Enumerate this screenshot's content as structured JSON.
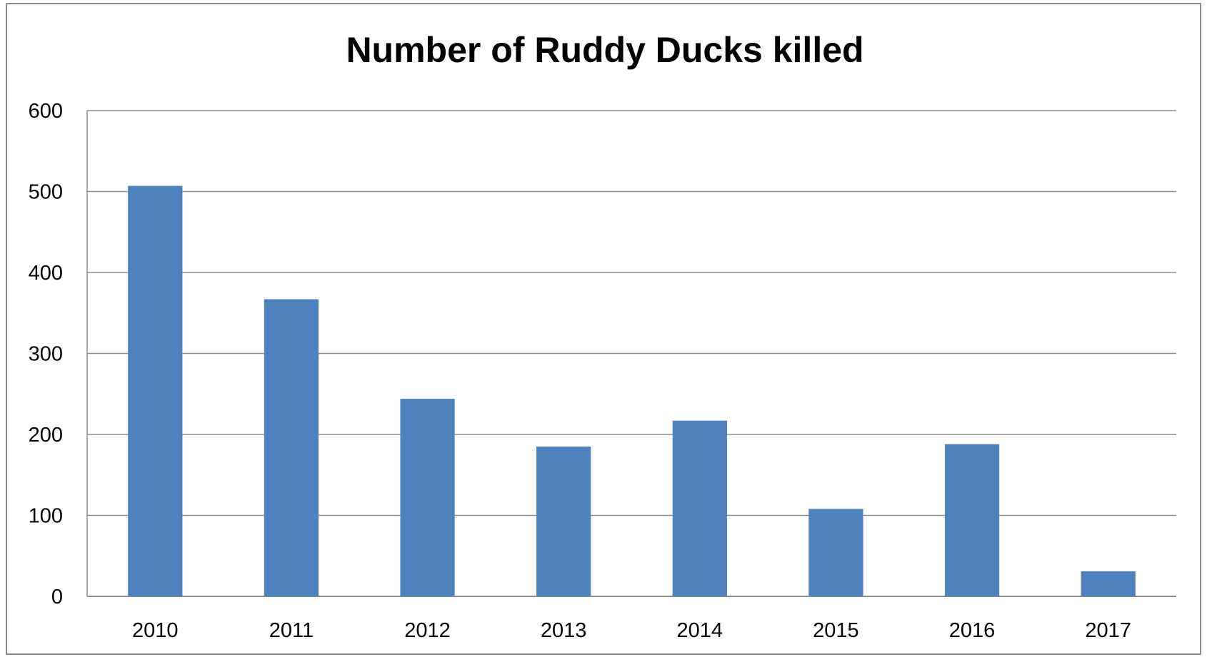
{
  "chart_data": {
    "type": "bar",
    "title": "Number of Ruddy Ducks killed",
    "xlabel": "",
    "ylabel": "",
    "categories": [
      "2010",
      "2011",
      "2012",
      "2013",
      "2014",
      "2015",
      "2016",
      "2017"
    ],
    "values": [
      507,
      367,
      244,
      185,
      217,
      108,
      188,
      31
    ],
    "ylim": [
      0,
      600
    ],
    "yticks": [
      "0",
      "100",
      "200",
      "300",
      "400",
      "500",
      "600"
    ],
    "grid": true,
    "legend": "none",
    "bar_color": "#4f81bd",
    "grid_color": "#8c8c8c"
  }
}
